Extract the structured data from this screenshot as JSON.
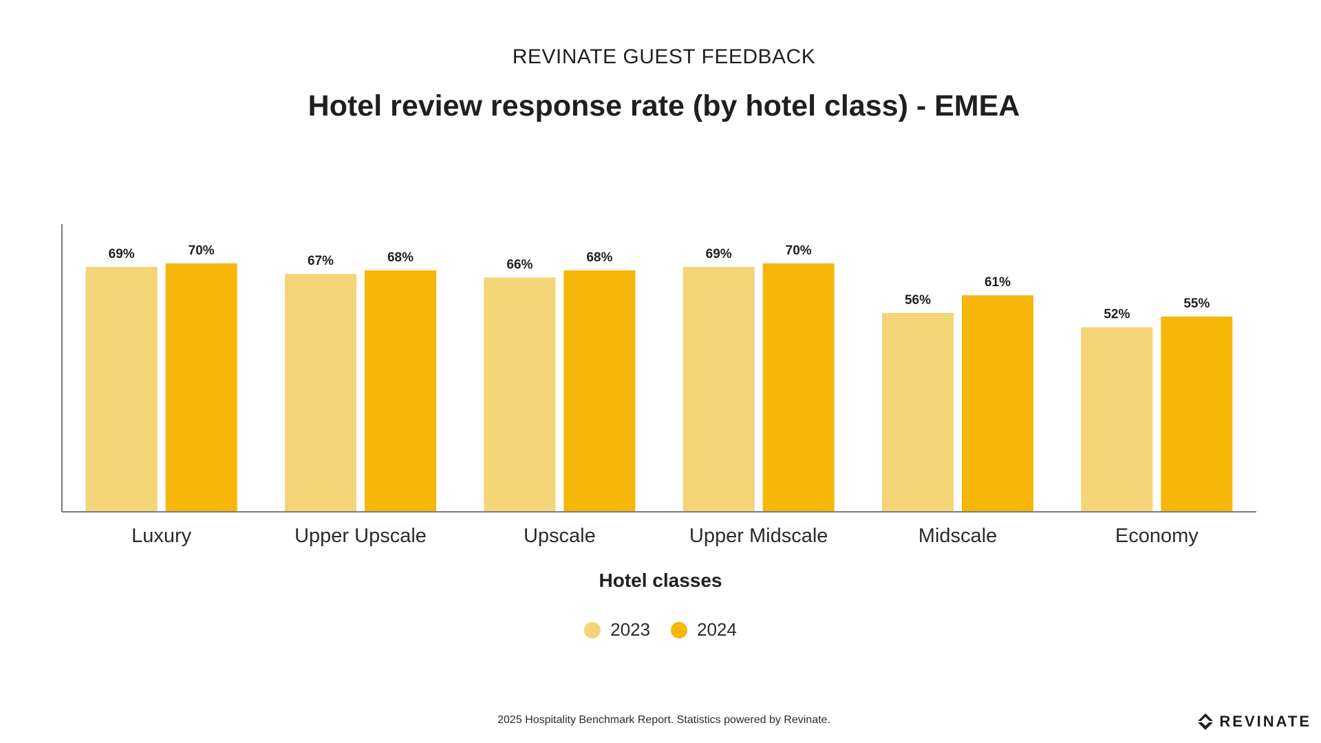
{
  "header": {
    "supertitle": "REVINATE GUEST FEEDBACK"
  },
  "colors": {
    "series_2023": "#F3D477",
    "series_2024": "#F6B60A",
    "axis": "#7a7a7a",
    "text": "#1f1f1f"
  },
  "chart_data": {
    "type": "bar",
    "title": "Hotel review response rate (by hotel class) - EMEA",
    "xlabel": "Hotel classes",
    "ylabel": "",
    "categories": [
      "Luxury",
      "Upper Upscale",
      "Upscale",
      "Upper Midscale",
      "Midscale",
      "Economy"
    ],
    "series": [
      {
        "name": "2023",
        "values": [
          69,
          67,
          66,
          69,
          56,
          52
        ],
        "labels": [
          "69%",
          "67%",
          "66%",
          "69%",
          "56%",
          "52%"
        ],
        "color": "#F3D477"
      },
      {
        "name": "2024",
        "values": [
          70,
          68,
          68,
          70,
          61,
          55
        ],
        "labels": [
          "70%",
          "68%",
          "68%",
          "70%",
          "61%",
          "55%"
        ],
        "color": "#F6B60A"
      }
    ],
    "ylim": [
      0,
      81
    ],
    "grid": false,
    "legend_position": "bottom-center"
  },
  "footer": {
    "text": "2025 Hospitality Benchmark Report. Statistics powered by Revinate."
  },
  "logo": {
    "text": "REVINATE",
    "icon": "revinate-logo-icon"
  }
}
